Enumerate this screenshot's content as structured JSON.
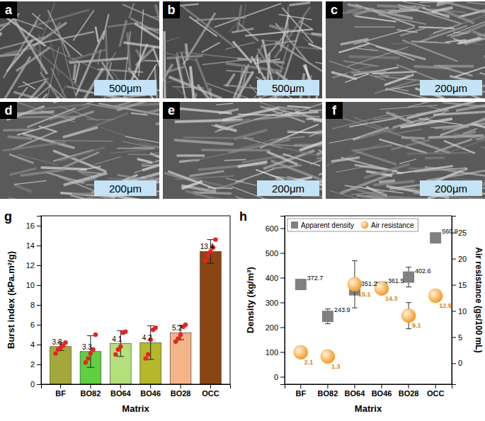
{
  "images": [
    {
      "label": "a",
      "scale_bar": "500μm"
    },
    {
      "label": "b",
      "scale_bar": "500μm"
    },
    {
      "label": "c",
      "scale_bar": "200μm"
    },
    {
      "label": "d",
      "scale_bar": "200μm"
    },
    {
      "label": "e",
      "scale_bar": "200μm"
    },
    {
      "label": "f",
      "scale_bar": "200μm"
    }
  ],
  "chart_data": [
    {
      "type": "bar",
      "title": "g",
      "x_label": "Matrix",
      "y_label": "Burst index (kPa.m²/g)",
      "categories": [
        "BF",
        "BO82",
        "BO64",
        "BO46",
        "BO28",
        "OCC"
      ],
      "values": [
        3.8,
        3.3,
        4.1,
        4.2,
        5.2,
        13.4
      ],
      "errors": [
        0.4,
        1.6,
        1.3,
        1.7,
        0.7,
        1.2
      ],
      "samples": [
        [
          3.1,
          3.5,
          3.7,
          3.9,
          4.2
        ],
        [
          2.2,
          2.6,
          3.1,
          3.5,
          5.0
        ],
        [
          3.0,
          3.5,
          3.8,
          5.2,
          5.3
        ],
        [
          2.6,
          3.0,
          4.5,
          5.5,
          5.7
        ],
        [
          4.3,
          4.6,
          5.0,
          5.8,
          6.0
        ],
        [
          12.5,
          13.0,
          13.4,
          13.8,
          14.6
        ]
      ],
      "colors": [
        "#a3a83a",
        "#5fd042",
        "#b3e07a",
        "#b5b82a",
        "#f4b48a",
        "#8b4513"
      ],
      "ylim": [
        0,
        17
      ],
      "yticks": [
        0,
        2,
        4,
        6,
        8,
        10,
        12,
        14,
        16
      ],
      "data_labels": true
    },
    {
      "type": "scatter",
      "title": "h",
      "x_label": "Matrix",
      "y_label": "Density (kg/m³)",
      "y2_label": "Air resistance (gs/100 mL)",
      "categories": [
        "BF",
        "BO82",
        "BO64",
        "BO46",
        "BO28",
        "OCC"
      ],
      "series": [
        {
          "name": "Apparent density",
          "color": "#808080",
          "marker": "square",
          "values": [
            372.7,
            243.9,
            351.2,
            361.5,
            402.6,
            560.9
          ],
          "errors": [
            20,
            30,
            20,
            20,
            40,
            15
          ]
        },
        {
          "name": "Air resistance",
          "color": "#f39c2b",
          "marker": "circle",
          "axis": "y2",
          "values": [
            2.1,
            1.3,
            15.1,
            14.3,
            9.1,
            12.9
          ],
          "errors": [
            0.8,
            0.8,
            4.5,
            0.8,
            2.5,
            0.8
          ]
        }
      ],
      "ylim": [
        -30,
        650
      ],
      "yticks": [
        0,
        100,
        200,
        300,
        400,
        500,
        600
      ],
      "y2lim": [
        -4,
        28.2
      ],
      "y2ticks": [
        0,
        5,
        10,
        15,
        20,
        25
      ],
      "legend": "top",
      "data_labels": true
    }
  ]
}
